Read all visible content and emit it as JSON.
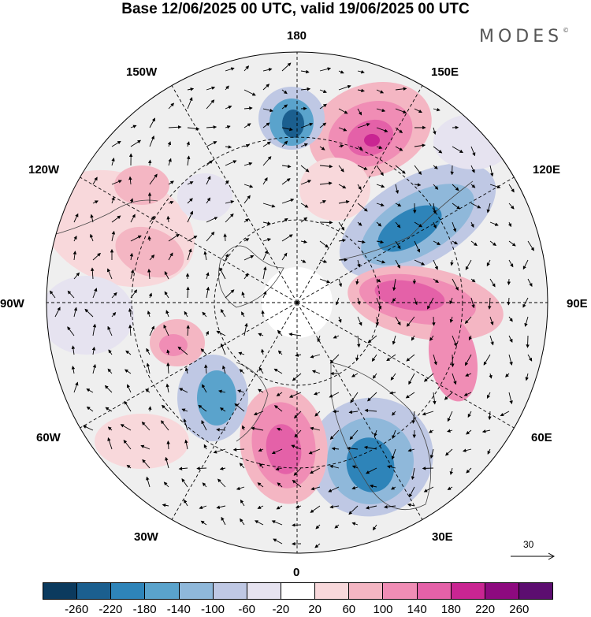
{
  "header": {
    "title": "Base 12/06/2025 00 UTC, valid 19/06/2025 00 UTC",
    "brand": "MODES",
    "brand_mark": "©"
  },
  "map": {
    "projection": "north-polar-stereographic",
    "longitude_labels": {
      "lon_180": "180",
      "lon_150E": "150E",
      "lon_120E": "120E",
      "lon_90E": "90E",
      "lon_60E": "60E",
      "lon_30E": "30E",
      "lon_0": "0",
      "lon_30W": "30W",
      "lon_60W": "60W",
      "lon_90W": "90W",
      "lon_120W": "120W",
      "lon_150W": "150W"
    },
    "vector_reference": {
      "label": "30"
    }
  },
  "colorbar": {
    "colors": [
      "#0b3a5e",
      "#1b5f8f",
      "#2e84b9",
      "#5aa3cc",
      "#8fb8da",
      "#bfc8e4",
      "#e6e3f0",
      "#ffffff",
      "#f8d8db",
      "#f4b6c3",
      "#f08db5",
      "#e461a8",
      "#c92592",
      "#8d0a7f",
      "#5c0d70"
    ],
    "tick_labels": [
      "-260",
      "-220",
      "-180",
      "-140",
      "-100",
      "-60",
      "-20",
      "20",
      "60",
      "100",
      "140",
      "180",
      "220",
      "260"
    ]
  }
}
